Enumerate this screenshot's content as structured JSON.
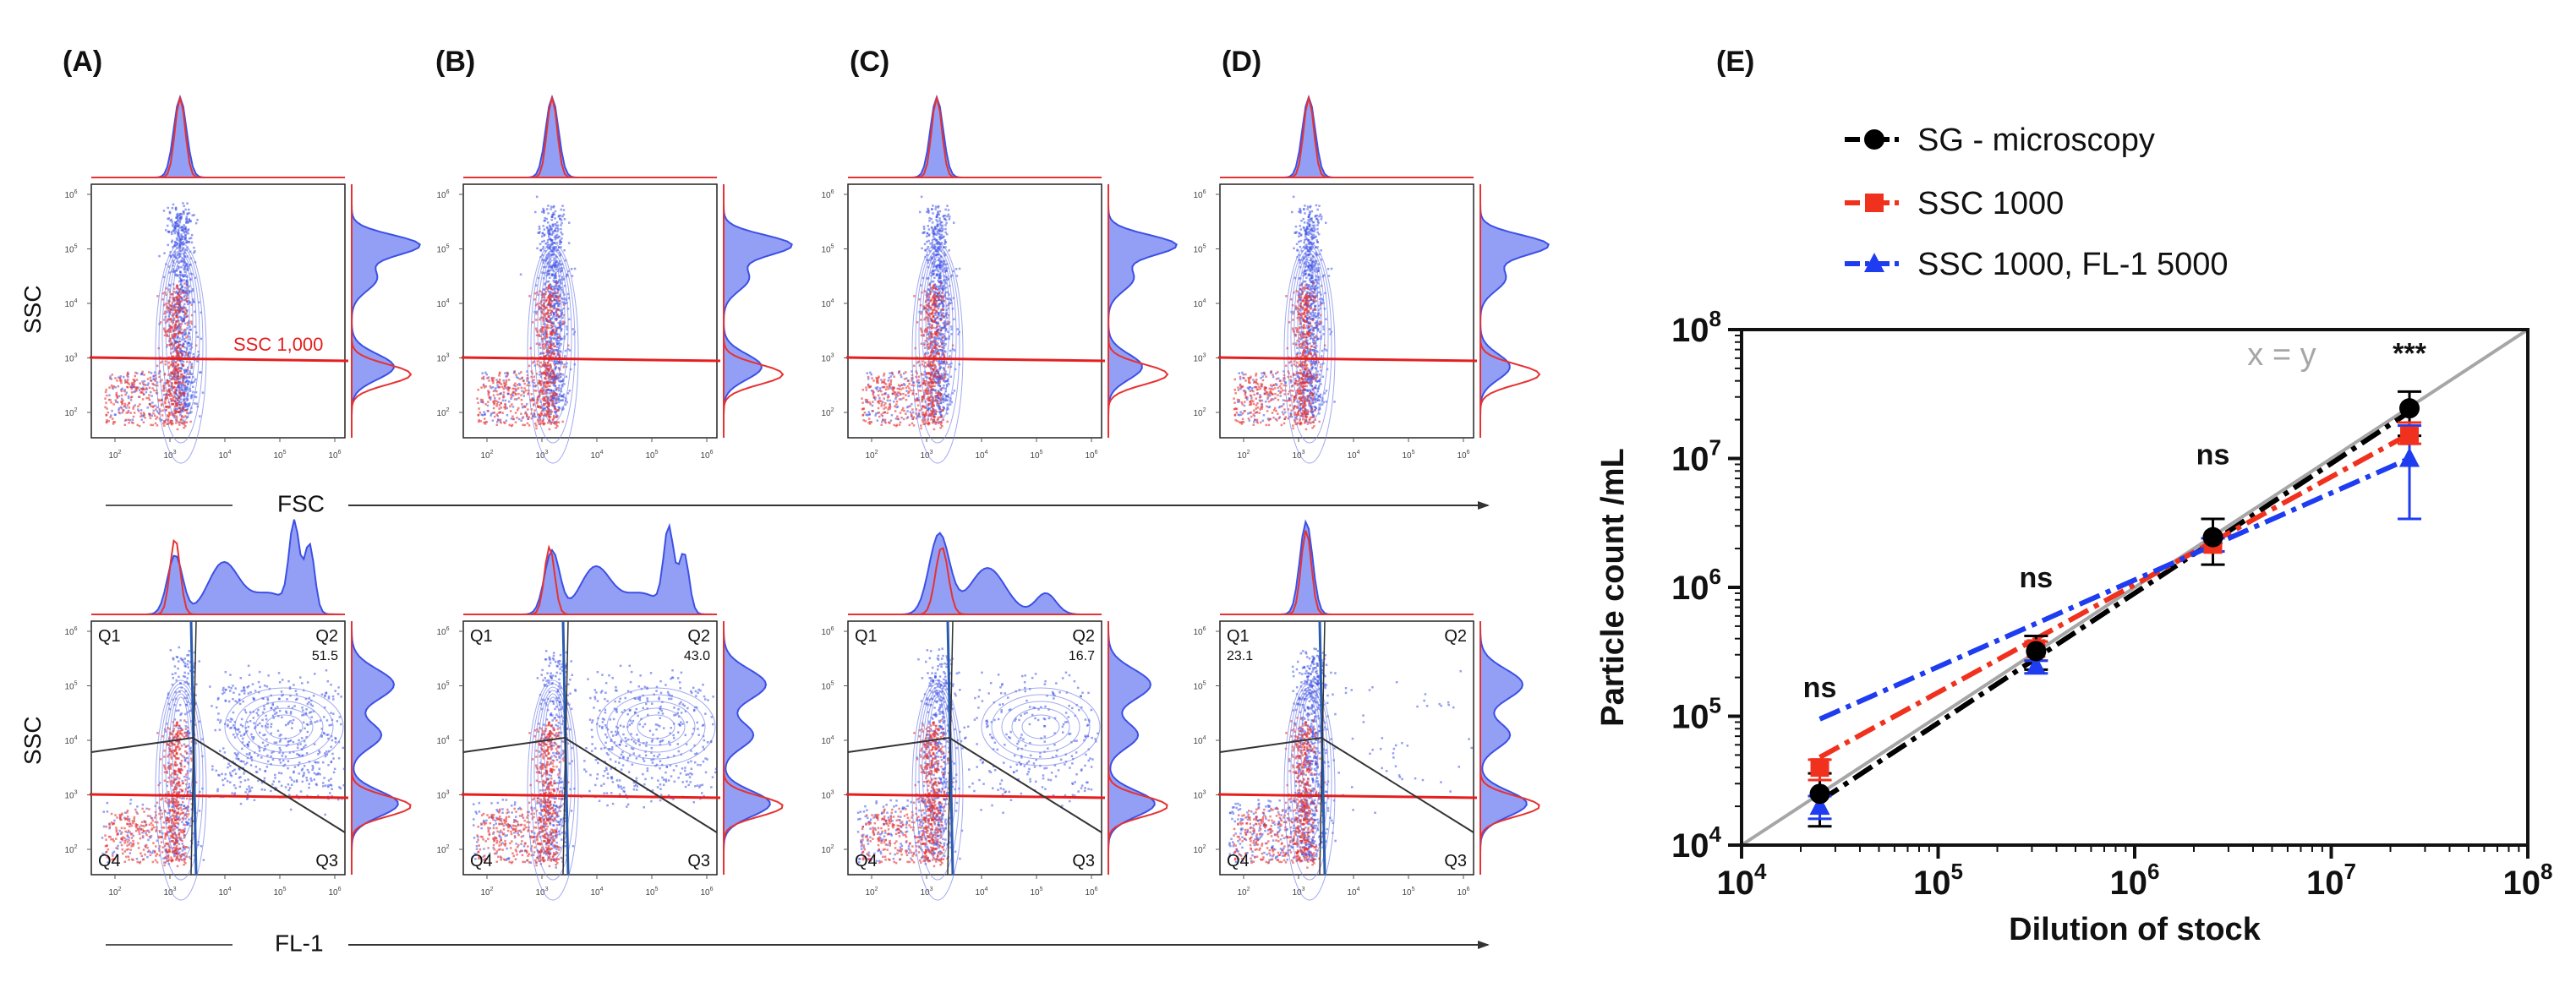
{
  "panel_labels": [
    "(A)",
    "(B)",
    "(C)",
    "(D)",
    "(E)"
  ],
  "cytometry": {
    "row1": {
      "ylabel": "SSC",
      "xlabel": "FSC",
      "gate_label": "SSC 1,000"
    },
    "row2": {
      "ylabel": "SSC",
      "xlabel": "FL-1",
      "quadrant_names": [
        "Q1",
        "Q2",
        "Q3",
        "Q4"
      ],
      "quadrant_values": [
        "Q2 51.5",
        "Q2 43.0",
        "Q2 16.7",
        "Q1 23.1"
      ],
      "quadrant_value_text": [
        "51.5",
        "43.0",
        "16.7",
        "23.1"
      ]
    },
    "x_tick_exponents": [
      "2",
      "3",
      "4",
      "5",
      "6"
    ],
    "y_tick_exponents": [
      "2",
      "3",
      "4",
      "5",
      "6"
    ],
    "colors": {
      "events": "#3c50e6",
      "control": "#e63232",
      "gate": "#e61e1e",
      "quad": "#2a5db0"
    }
  },
  "chart_data": {
    "type": "scatter",
    "xlabel": "Dilution of stock",
    "ylabel": "Particle count /mL",
    "xscale": "log",
    "yscale": "log",
    "xlim": [
      10000,
      100000000
    ],
    "ylim": [
      10000,
      100000000
    ],
    "tick_exponents": [
      "4",
      "5",
      "6",
      "7",
      "8"
    ],
    "reference_line": {
      "label": "x = y",
      "color": "#a6a6a6"
    },
    "legend_position": "top",
    "x": [
      25000,
      315000,
      2500000,
      25000000
    ],
    "series": [
      {
        "name": "SG - microscopy",
        "color": "#000000",
        "marker": "circle",
        "values": [
          25000,
          320000,
          2450000,
          24500000
        ],
        "err_low": [
          14000,
          230000,
          1500000,
          15000000
        ],
        "err_high": [
          36000,
          420000,
          3400000,
          33000000
        ],
        "fit": [
          [
            25000,
            22000
          ],
          [
            25000000,
            23000000
          ]
        ]
      },
      {
        "name": "SSC 1000",
        "color": "#f0311e",
        "marker": "square",
        "values": [
          40000,
          335000,
          2150000,
          15000000
        ],
        "err_low": [
          32000,
          270000,
          1900000,
          13000000
        ],
        "err_high": [
          46000,
          380000,
          2400000,
          19000000
        ],
        "fit": [
          [
            25000,
            48000
          ],
          [
            25000000,
            15500000
          ]
        ]
      },
      {
        "name": "SSC 1000, FL-1 5000",
        "color": "#1e3cf0",
        "marker": "triangle",
        "values": [
          20000,
          245000,
          2150000,
          10000000
        ],
        "err_low": [
          16000,
          215000,
          1900000,
          3400000
        ],
        "err_high": [
          24000,
          270000,
          2400000,
          18000000
        ],
        "fit": [
          [
            25000,
            95000
          ],
          [
            25000000,
            10000000
          ]
        ]
      }
    ],
    "annotations": [
      {
        "text": "ns",
        "x": 25000,
        "y": 140000
      },
      {
        "text": "ns",
        "x": 315000,
        "y": 1000000
      },
      {
        "text": "ns",
        "x": 2500000,
        "y": 9000000
      },
      {
        "text": "***",
        "x": 25000000,
        "y": 55000000
      }
    ]
  }
}
